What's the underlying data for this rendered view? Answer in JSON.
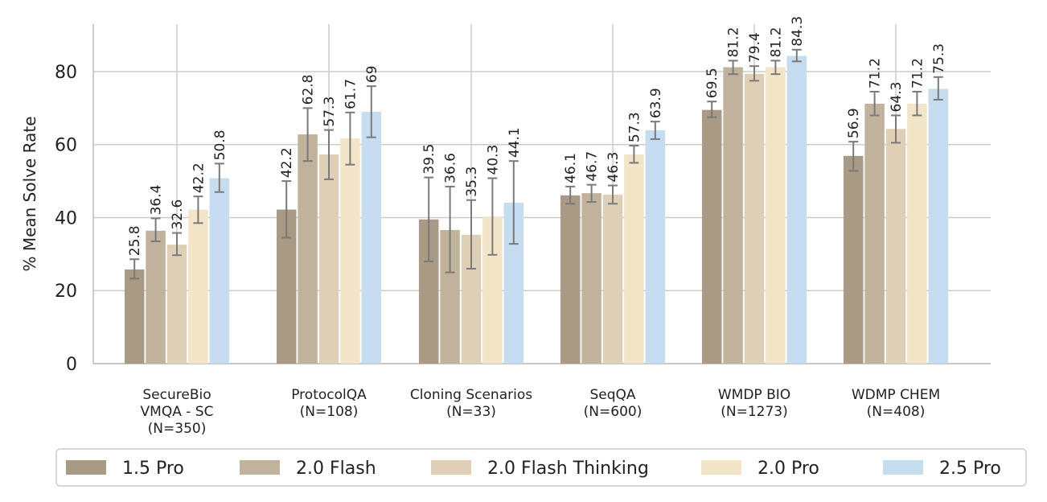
{
  "chart_data": {
    "type": "bar",
    "title": "",
    "xlabel": "",
    "ylabel": "% Mean Solve Rate",
    "ylim": [
      0,
      93
    ],
    "yticks": [
      0,
      20,
      40,
      60,
      80
    ],
    "grid": true,
    "legend_position": "bottom",
    "categories": [
      [
        "SecureBio",
        "VMQA - SC",
        "(N=350)"
      ],
      [
        "ProtocolQA",
        "(N=108)"
      ],
      [
        "Cloning Scenarios",
        "(N=33)"
      ],
      [
        "SeqQA",
        "(N=600)"
      ],
      [
        "WMDP BIO",
        "(N=1273)"
      ],
      [
        "WDMP CHEM",
        "(N=408)"
      ]
    ],
    "series": [
      {
        "name": "1.5 Pro",
        "color": "#a89a85",
        "values": [
          25.8,
          42.2,
          39.5,
          46.1,
          69.5,
          56.9
        ],
        "labels": [
          "25.8",
          "42.2",
          "39.5",
          "46.1",
          "69.5",
          "56.9"
        ],
        "err_low": [
          23.3,
          34.5,
          28.0,
          43.8,
          67.5,
          52.8
        ],
        "err_high": [
          28.6,
          50.0,
          51.0,
          48.5,
          71.8,
          60.8
        ]
      },
      {
        "name": "2.0 Flash",
        "color": "#c1b29c",
        "values": [
          36.4,
          62.8,
          36.6,
          46.7,
          81.2,
          71.2
        ],
        "labels": [
          "36.4",
          "62.8",
          "36.6",
          "46.7",
          "81.2",
          "71.2"
        ],
        "err_low": [
          33.5,
          55.5,
          25.0,
          44.3,
          79.3,
          68.0
        ],
        "err_high": [
          39.8,
          70.0,
          48.5,
          49.0,
          83.0,
          74.5
        ]
      },
      {
        "name": "2.0 Flash Thinking",
        "color": "#dfcfb6",
        "values": [
          32.6,
          57.3,
          35.3,
          46.3,
          79.4,
          64.3
        ],
        "labels": [
          "32.6",
          "57.3",
          "35.3",
          "46.3",
          "79.4",
          "64.3"
        ],
        "err_low": [
          29.7,
          50.5,
          26.0,
          43.8,
          77.5,
          60.5
        ],
        "err_high": [
          35.8,
          64.0,
          44.8,
          48.8,
          81.5,
          68.0
        ]
      },
      {
        "name": "2.0 Pro",
        "color": "#f2e5c8",
        "values": [
          42.2,
          61.7,
          40.3,
          57.3,
          81.2,
          71.2
        ],
        "labels": [
          "42.2",
          "61.7",
          "40.3",
          "57.3",
          "81.2",
          "71.2"
        ],
        "err_low": [
          38.5,
          54.5,
          29.8,
          55.0,
          79.3,
          68.0
        ],
        "err_high": [
          45.8,
          68.8,
          50.8,
          59.7,
          83.0,
          74.5
        ]
      },
      {
        "name": "2.5 Pro",
        "color": "#c6dcef",
        "values": [
          50.8,
          69,
          44.1,
          63.9,
          84.3,
          75.3
        ],
        "labels": [
          "50.8",
          "69",
          "44.1",
          "63.9",
          "84.3",
          "75.3"
        ],
        "err_low": [
          47.0,
          62.0,
          32.8,
          61.5,
          82.8,
          72.3
        ],
        "err_high": [
          54.8,
          76.0,
          55.5,
          66.3,
          86.0,
          78.5
        ]
      }
    ]
  }
}
